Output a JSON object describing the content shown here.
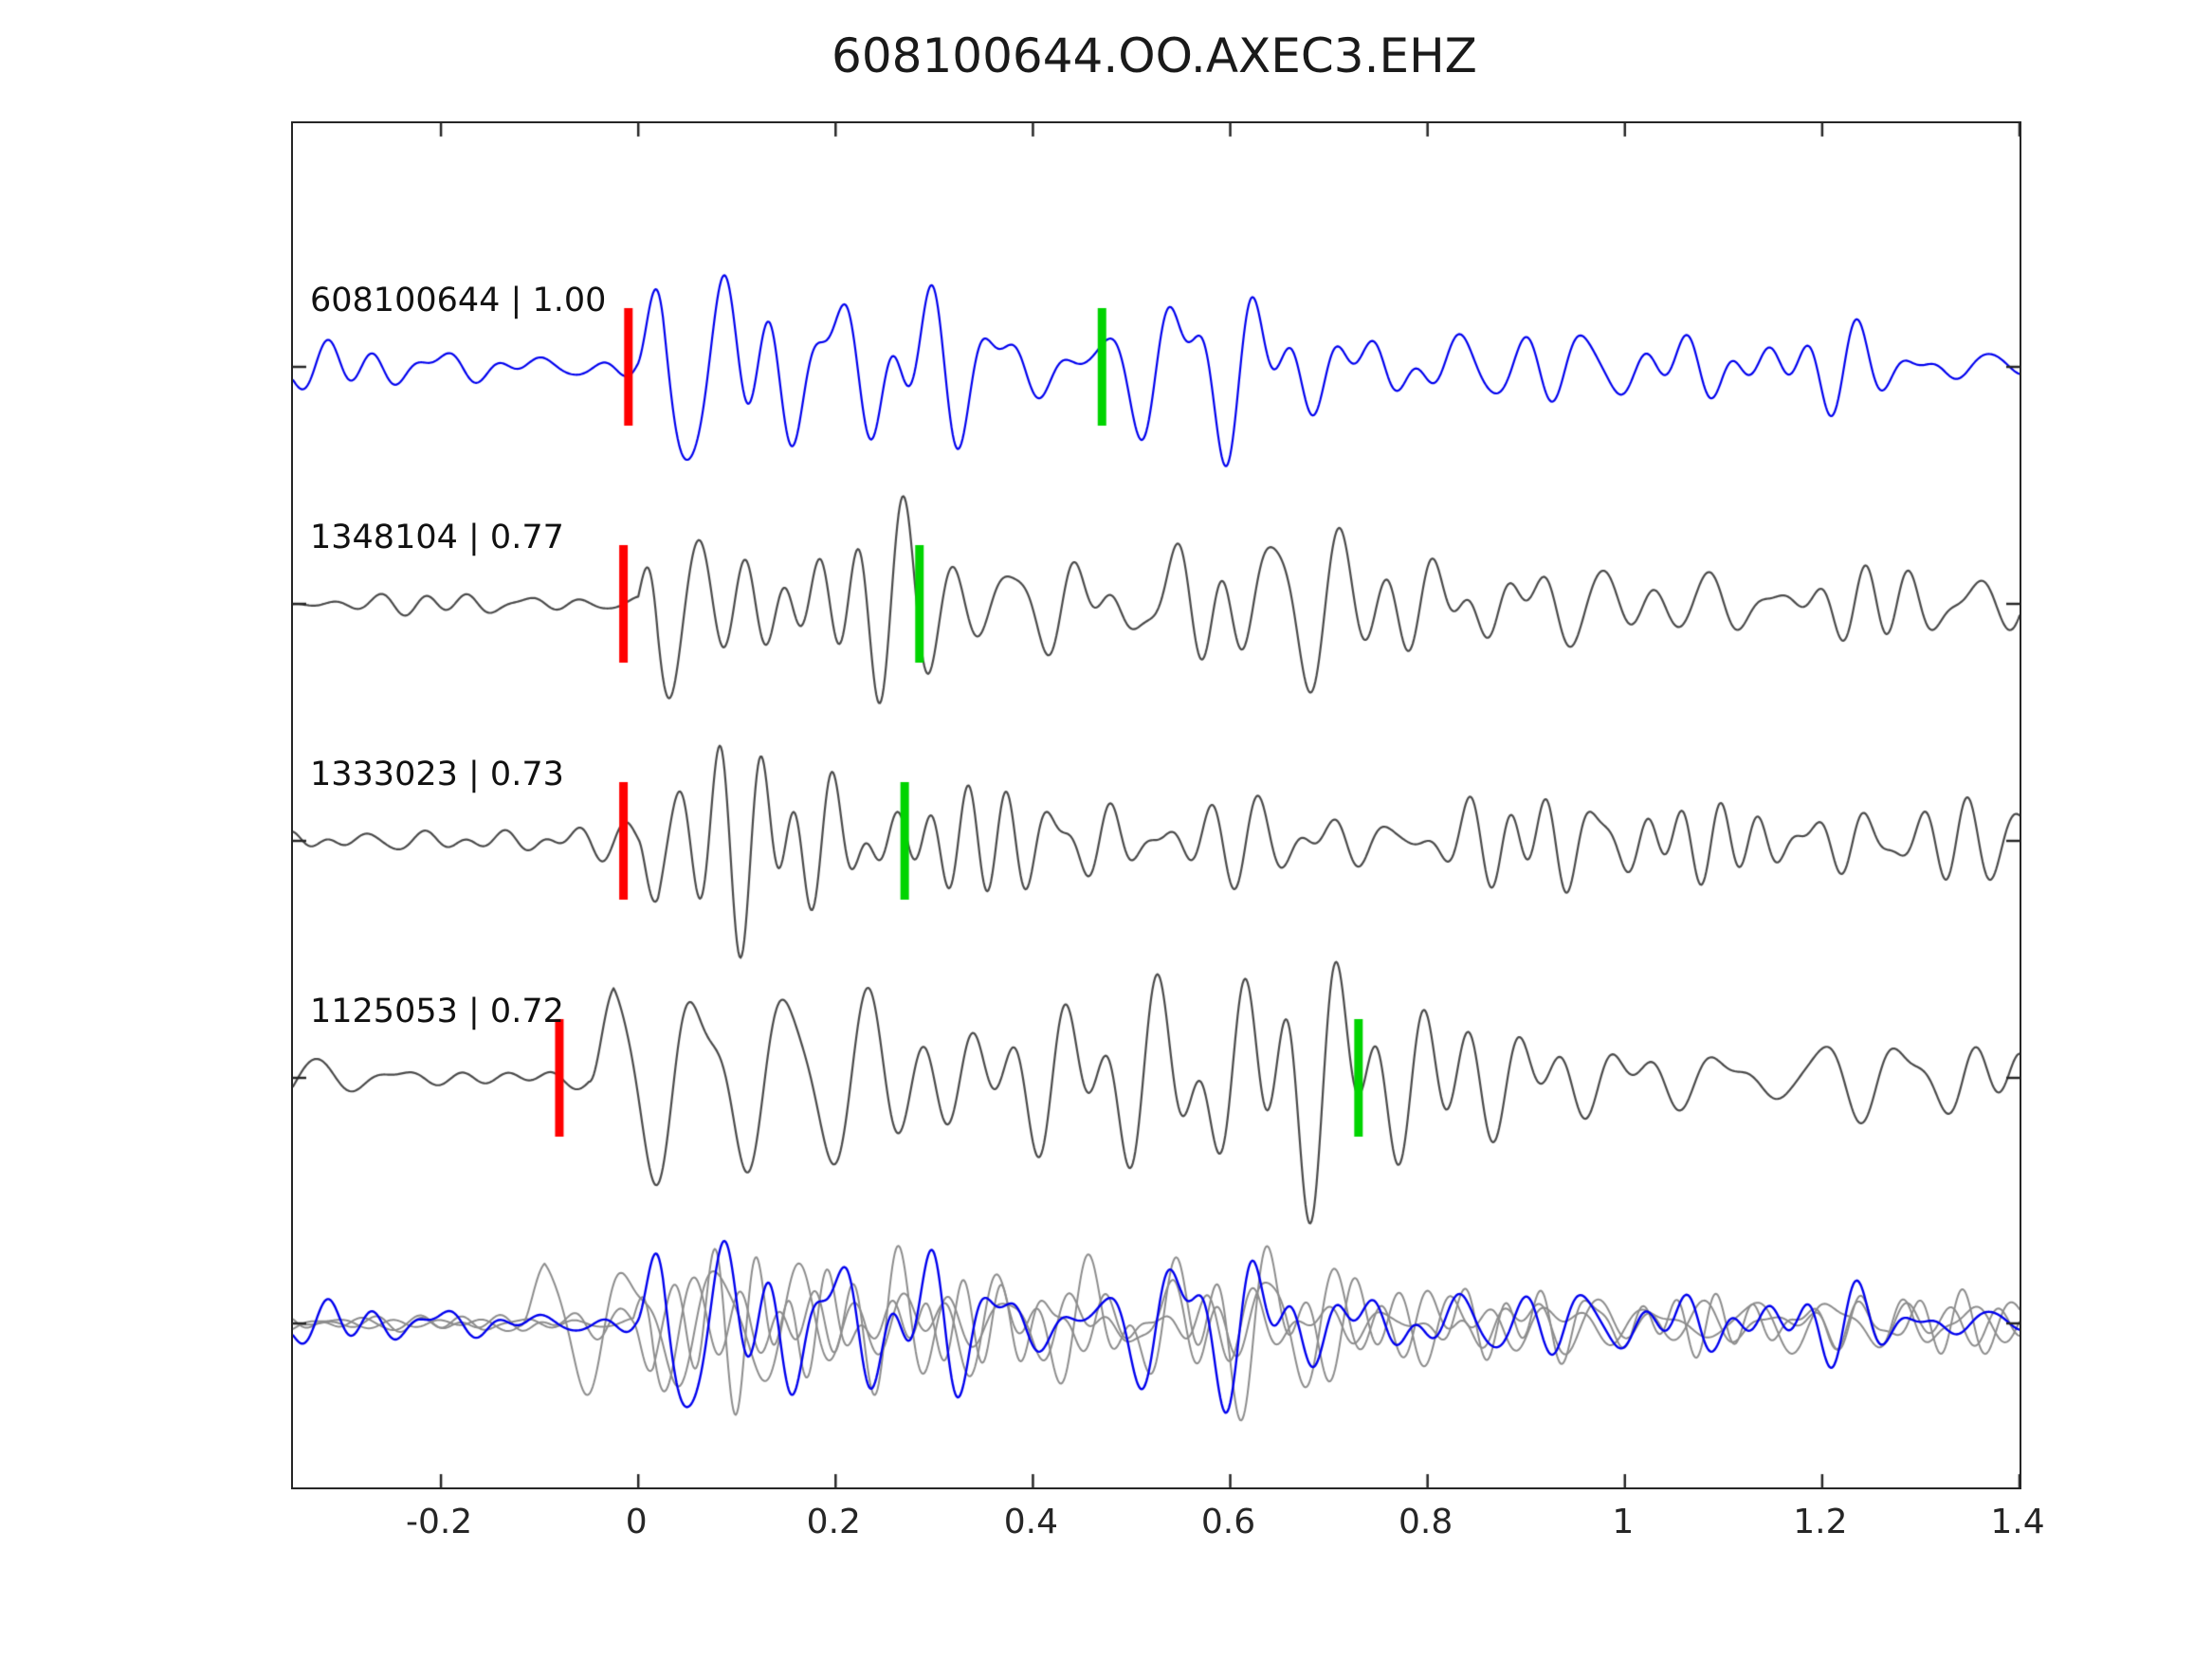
{
  "chart_data": {
    "type": "line",
    "title": "608100644.OO.AXEC3.EHZ",
    "xlabel": "",
    "ylabel": "",
    "xlim": [
      -0.35,
      1.4
    ],
    "grid": false,
    "legend": "none",
    "x_ticks": [
      -0.2,
      0,
      0.2,
      0.4,
      0.6,
      0.8,
      1,
      1.2,
      1.4
    ],
    "x_tick_labels": [
      "-0.2",
      "0",
      "0.2",
      "0.4",
      "0.6",
      "0.8",
      "1",
      "1.2",
      "1.4"
    ],
    "pick_colors": {
      "red": "#ff0000",
      "green": "#00d400"
    },
    "frame_color": "#262626",
    "traces": [
      {
        "id": "608100644",
        "correlation": "1.00",
        "label": "608100644 | 1.00",
        "color": "#0000ee",
        "role": "target",
        "red_pick_x": -0.01,
        "green_pick_x": 0.47,
        "synth": {
          "seed": 101,
          "noise": 0.26,
          "onset": 0.0,
          "attack": 0.025,
          "tau": 0.3,
          "coda": 0.38,
          "amp": 100,
          "freq_lo": 9,
          "freq_hi": 30,
          "bursts": [
            {
              "t": 0.55,
              "w": 0.06,
              "a": 0.25
            }
          ]
        }
      },
      {
        "id": "1348104",
        "correlation": "0.77",
        "label": "1348104 | 0.77",
        "color": "#4a4a4a",
        "role": "match",
        "red_pick_x": -0.015,
        "green_pick_x": 0.285,
        "synth": {
          "seed": 202,
          "noise": 0.11,
          "onset": 0.0,
          "attack": 0.02,
          "tau": 0.22,
          "coda": 0.3,
          "amp": 125,
          "freq_lo": 9,
          "freq_hi": 28,
          "bursts": [
            {
              "t": 0.63,
              "w": 0.07,
              "a": 0.22
            }
          ]
        }
      },
      {
        "id": "1333023",
        "correlation": "0.73",
        "label": "1333023 | 0.73",
        "color": "#4a4a4a",
        "role": "match",
        "red_pick_x": -0.015,
        "green_pick_x": 0.27,
        "synth": {
          "seed": 303,
          "noise": 0.18,
          "onset": 0.0,
          "attack": 0.02,
          "tau": 0.24,
          "coda": 0.32,
          "amp": 115,
          "freq_lo": 9,
          "freq_hi": 29,
          "bursts": [
            {
              "t": 0.92,
              "w": 0.08,
              "a": 0.14
            }
          ]
        }
      },
      {
        "id": "1125053",
        "correlation": "0.72",
        "label": "1125053 | 0.72",
        "color": "#4a4a4a",
        "role": "match",
        "red_pick_x": -0.08,
        "green_pick_x": 0.73,
        "synth": {
          "seed": 404,
          "noise": 0.15,
          "onset": -0.05,
          "attack": 0.025,
          "tau": 0.46,
          "coda": 0.28,
          "amp": 135,
          "freq_lo": 8,
          "freq_hi": 26,
          "bursts": [
            {
              "t": 0.66,
              "w": 0.07,
              "a": 0.45
            }
          ]
        }
      }
    ],
    "overlay": {
      "description": "aligned overlay of match traces (gray) with target trace (blue) on top",
      "gray_color": "#8d8d8d",
      "blue_color": "#0000ee",
      "members": [
        "1348104",
        "1333023",
        "1125053"
      ],
      "target": "608100644",
      "amp": 90
    }
  }
}
